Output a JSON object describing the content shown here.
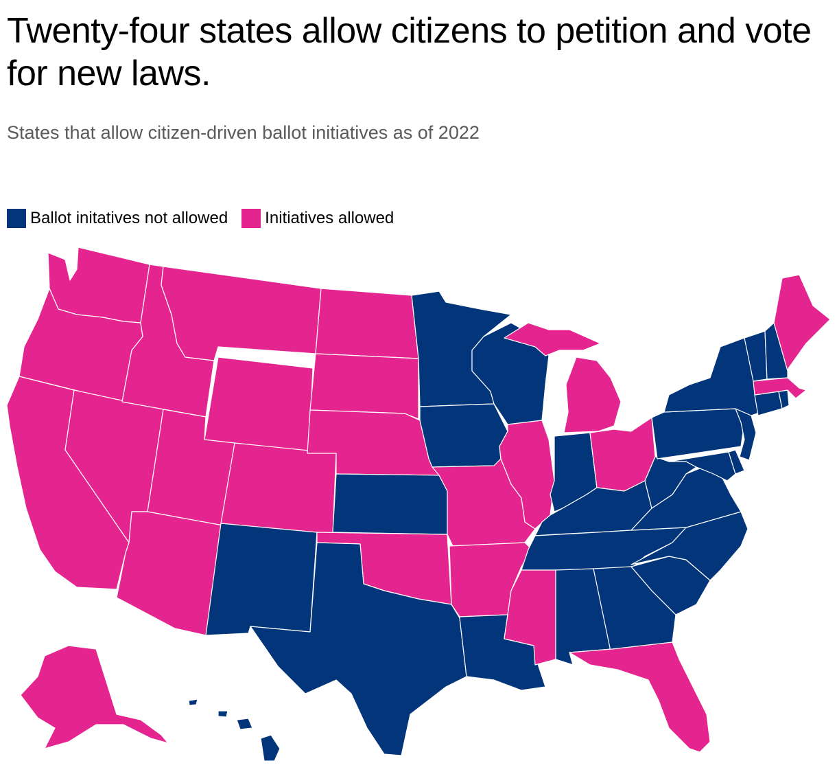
{
  "title": "Twenty-four states allow citizens to petition and vote for new laws.",
  "subtitle": "States that allow citizen-driven ballot initiatives as of 2022",
  "legend": {
    "not_allowed": {
      "label": "Ballot initatives not allowed",
      "color": "#03357a"
    },
    "allowed": {
      "label": "Initiatives allowed",
      "color": "#e5258f"
    }
  },
  "map_data": {
    "allowed": [
      "WA",
      "OR",
      "CA",
      "NV",
      "ID",
      "MT",
      "WY",
      "UT",
      "AZ",
      "CO",
      "ND",
      "SD",
      "NE",
      "OK",
      "MO",
      "AR",
      "MI",
      "IL",
      "OH",
      "MS",
      "FL",
      "MA",
      "ME",
      "AK"
    ],
    "not_allowed": [
      "NM",
      "TX",
      "KS",
      "MN",
      "IA",
      "WI",
      "LA",
      "AL",
      "GA",
      "SC",
      "NC",
      "TN",
      "KY",
      "IN",
      "WV",
      "VA",
      "MD",
      "DE",
      "NJ",
      "PA",
      "NY",
      "CT",
      "RI",
      "VT",
      "NH",
      "HI"
    ]
  }
}
